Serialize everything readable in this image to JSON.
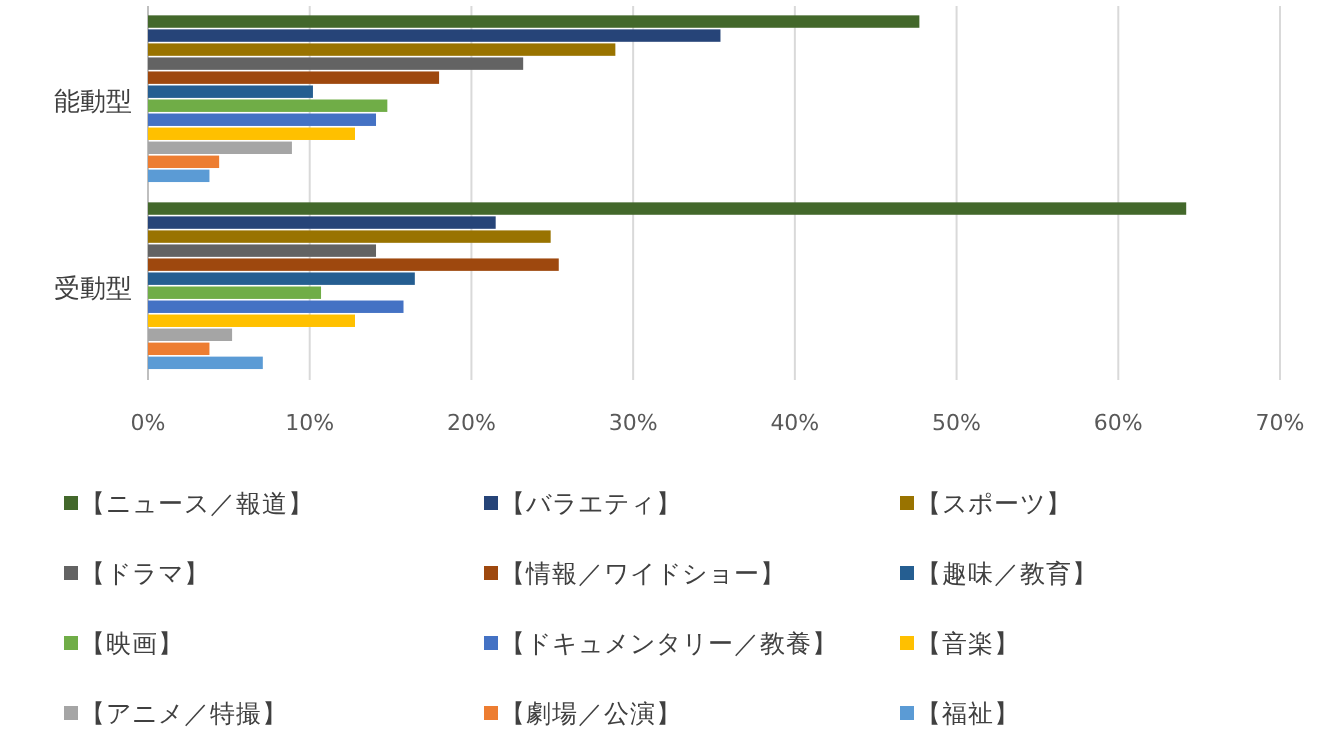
{
  "chart_data": {
    "type": "bar",
    "orientation": "horizontal",
    "categories": [
      "能動型",
      "受動型"
    ],
    "series": [
      {
        "name": "【ニュース／報道】",
        "color": "#43682b",
        "values": [
          47.7,
          64.2
        ]
      },
      {
        "name": "【バラエティ】",
        "color": "#264478",
        "values": [
          35.4,
          21.5
        ]
      },
      {
        "name": "【スポーツ】",
        "color": "#997300",
        "values": [
          28.9,
          24.9
        ]
      },
      {
        "name": "【ドラマ】",
        "color": "#636363",
        "values": [
          23.2,
          14.1
        ]
      },
      {
        "name": "【情報／ワイドショー】",
        "color": "#9e480e",
        "values": [
          18.0,
          25.4
        ]
      },
      {
        "name": "【趣味／教育】",
        "color": "#255e91",
        "values": [
          10.2,
          16.5
        ]
      },
      {
        "name": "【映画】",
        "color": "#70ad47",
        "values": [
          14.8,
          10.7
        ]
      },
      {
        "name": "【ドキュメンタリー／教養】",
        "color": "#4472c4",
        "values": [
          14.1,
          15.8
        ]
      },
      {
        "name": "【音楽】",
        "color": "#ffc000",
        "values": [
          12.8,
          12.8
        ]
      },
      {
        "name": "【アニメ／特撮】",
        "color": "#a5a5a5",
        "values": [
          8.9,
          5.2
        ]
      },
      {
        "name": "【劇場／公演】",
        "color": "#ed7d31",
        "values": [
          4.4,
          3.8
        ]
      },
      {
        "name": "【福祉】",
        "color": "#5b9bd5",
        "values": [
          3.8,
          7.1
        ]
      }
    ],
    "xlim": [
      0,
      70
    ],
    "xticks": [
      {
        "value": 0,
        "label": "0%"
      },
      {
        "value": 10,
        "label": "10%"
      },
      {
        "value": 20,
        "label": "20%"
      },
      {
        "value": 30,
        "label": "30%"
      },
      {
        "value": 40,
        "label": "40%"
      },
      {
        "value": 50,
        "label": "50%"
      },
      {
        "value": 60,
        "label": "60%"
      },
      {
        "value": 70,
        "label": "70%"
      }
    ],
    "grid": "x",
    "legend": "bottom"
  }
}
